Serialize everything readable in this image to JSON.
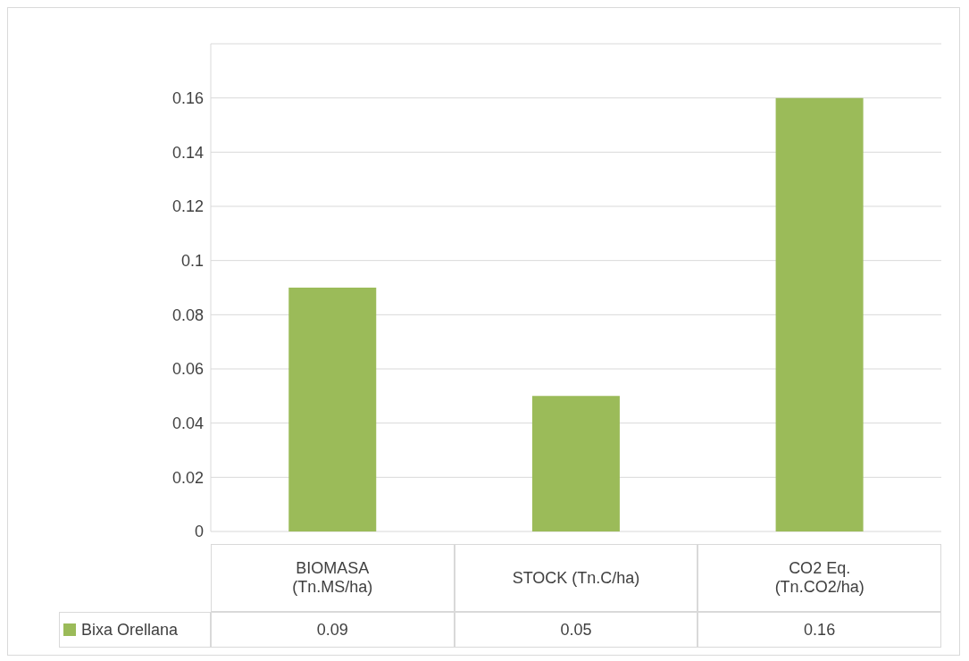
{
  "chart_data": {
    "type": "bar",
    "categories": [
      "BIOMASA\n(Tn.MS/ha)",
      "STOCK (Tn.C/ha)",
      "CO2 Eq.\n(Tn.CO2/ha)"
    ],
    "series": [
      {
        "name": "Bixa Orellana",
        "color": "#9bbb59",
        "values": [
          0.09,
          0.05,
          0.16
        ]
      }
    ],
    "ylim": [
      0,
      0.18
    ],
    "yticks": [
      0,
      0.02,
      0.04,
      0.06,
      0.08,
      0.1,
      0.12,
      0.14,
      0.16,
      {
        "value": 0.18,
        "label": null
      }
    ],
    "grid": "y",
    "legend": "bottom",
    "data_labels": true
  }
}
